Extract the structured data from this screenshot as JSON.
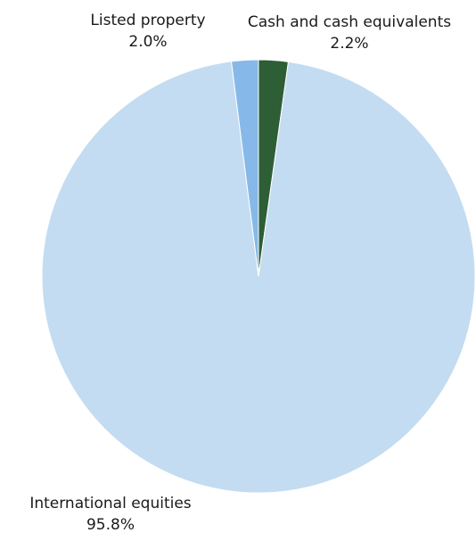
{
  "chart_data": {
    "type": "pie",
    "title": "",
    "slices": [
      {
        "label": "Cash and cash equivalents",
        "value": 2.2,
        "value_label": "2.2%",
        "color": "#2d5e35"
      },
      {
        "label": "International equities",
        "value": 95.8,
        "value_label": "95.8%",
        "color": "#c3dcf1"
      },
      {
        "label": "Listed property",
        "value": 2.0,
        "value_label": "2.0%",
        "color": "#86b9e9"
      }
    ],
    "start_angle": "12 o'clock",
    "direction": "clockwise",
    "legend": "none",
    "data_labels": "outside"
  }
}
